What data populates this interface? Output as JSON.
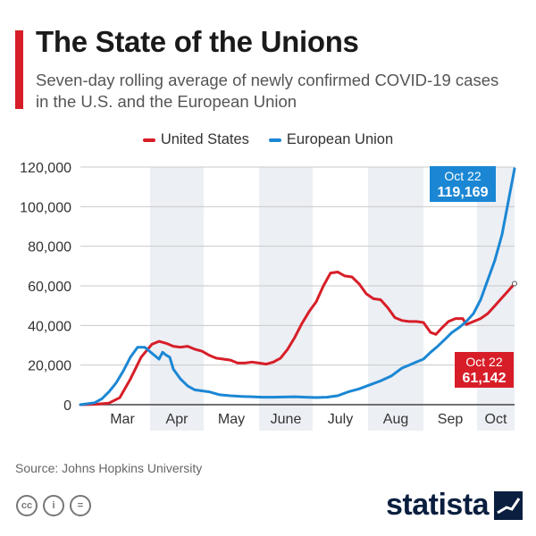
{
  "header": {
    "title": "The State of the Unions",
    "subtitle": "Seven-day rolling average of newly confirmed COVID-19 cases in the U.S. and the European Union"
  },
  "legend": {
    "us_label": "United States",
    "eu_label": "European Union"
  },
  "colors": {
    "us": "#d71e28",
    "eu": "#1b87d4",
    "shade": "#eceff4",
    "grid": "#c9c9c9",
    "brand": "#0a1f3f"
  },
  "chart_data": {
    "type": "line",
    "x_unit": "days since Mar 1, 2020",
    "xlim": [
      -8,
      235
    ],
    "ylim": [
      0,
      120000
    ],
    "y_ticks": [
      0,
      20000,
      40000,
      60000,
      80000,
      100000,
      120000
    ],
    "y_tick_labels": [
      "0",
      "20,000",
      "40,000",
      "60,000",
      "80,000",
      "100,000",
      "120,000"
    ],
    "months": [
      {
        "label": "Mar",
        "start": 0,
        "end": 31,
        "shaded": false
      },
      {
        "label": "Apr",
        "start": 31,
        "end": 61,
        "shaded": true
      },
      {
        "label": "May",
        "start": 61,
        "end": 92,
        "shaded": false
      },
      {
        "label": "June",
        "start": 92,
        "end": 122,
        "shaded": true
      },
      {
        "label": "July",
        "start": 122,
        "end": 153,
        "shaded": false
      },
      {
        "label": "Aug",
        "start": 153,
        "end": 184,
        "shaded": true
      },
      {
        "label": "Sep",
        "start": 184,
        "end": 214,
        "shaded": false
      },
      {
        "label": "Oct",
        "start": 214,
        "end": 235,
        "shaded": true
      }
    ],
    "series": [
      {
        "name": "United States",
        "color": "#d71e28",
        "points": [
          [
            -8,
            0
          ],
          [
            0,
            200
          ],
          [
            8,
            800
          ],
          [
            14,
            3500
          ],
          [
            20,
            13000
          ],
          [
            26,
            24000
          ],
          [
            32,
            30500
          ],
          [
            36,
            32000
          ],
          [
            40,
            31000
          ],
          [
            44,
            29500
          ],
          [
            48,
            29000
          ],
          [
            52,
            29500
          ],
          [
            56,
            28000
          ],
          [
            60,
            27000
          ],
          [
            64,
            25000
          ],
          [
            68,
            23500
          ],
          [
            72,
            23000
          ],
          [
            76,
            22500
          ],
          [
            80,
            21000
          ],
          [
            84,
            21000
          ],
          [
            88,
            21500
          ],
          [
            92,
            21000
          ],
          [
            96,
            20500
          ],
          [
            100,
            21500
          ],
          [
            104,
            23500
          ],
          [
            108,
            28000
          ],
          [
            112,
            34000
          ],
          [
            116,
            41000
          ],
          [
            120,
            47000
          ],
          [
            124,
            52000
          ],
          [
            128,
            60000
          ],
          [
            132,
            66500
          ],
          [
            136,
            67000
          ],
          [
            140,
            65000
          ],
          [
            144,
            64500
          ],
          [
            148,
            61000
          ],
          [
            152,
            56000
          ],
          [
            156,
            53500
          ],
          [
            160,
            53000
          ],
          [
            164,
            49000
          ],
          [
            168,
            44000
          ],
          [
            172,
            42500
          ],
          [
            176,
            42000
          ],
          [
            180,
            42000
          ],
          [
            184,
            41500
          ],
          [
            188,
            36500
          ],
          [
            191,
            35500
          ],
          [
            194,
            38500
          ],
          [
            198,
            42000
          ],
          [
            202,
            43500
          ],
          [
            206,
            43500
          ],
          [
            208,
            40500
          ],
          [
            212,
            42000
          ],
          [
            216,
            43500
          ],
          [
            220,
            46000
          ],
          [
            224,
            50000
          ],
          [
            228,
            54000
          ],
          [
            232,
            58000
          ],
          [
            235,
            61142
          ]
        ]
      },
      {
        "name": "European Union",
        "color": "#1b87d4",
        "points": [
          [
            -8,
            0
          ],
          [
            0,
            1000
          ],
          [
            4,
            3000
          ],
          [
            8,
            6500
          ],
          [
            12,
            11000
          ],
          [
            16,
            17000
          ],
          [
            20,
            24000
          ],
          [
            24,
            29000
          ],
          [
            28,
            29000
          ],
          [
            32,
            26000
          ],
          [
            36,
            23000
          ],
          [
            38,
            26500
          ],
          [
            40,
            25000
          ],
          [
            42,
            24000
          ],
          [
            44,
            18000
          ],
          [
            48,
            13000
          ],
          [
            52,
            9500
          ],
          [
            56,
            7500
          ],
          [
            60,
            7000
          ],
          [
            64,
            6500
          ],
          [
            70,
            5000
          ],
          [
            76,
            4500
          ],
          [
            82,
            4200
          ],
          [
            88,
            4000
          ],
          [
            94,
            3800
          ],
          [
            100,
            3800
          ],
          [
            106,
            3900
          ],
          [
            112,
            4000
          ],
          [
            118,
            3800
          ],
          [
            124,
            3600
          ],
          [
            130,
            3800
          ],
          [
            136,
            4500
          ],
          [
            142,
            6500
          ],
          [
            148,
            8000
          ],
          [
            154,
            10000
          ],
          [
            160,
            12000
          ],
          [
            166,
            14500
          ],
          [
            172,
            18500
          ],
          [
            176,
            20000
          ],
          [
            180,
            21500
          ],
          [
            184,
            23000
          ],
          [
            188,
            26500
          ],
          [
            192,
            29500
          ],
          [
            196,
            33000
          ],
          [
            200,
            36500
          ],
          [
            204,
            39000
          ],
          [
            208,
            42000
          ],
          [
            212,
            46000
          ],
          [
            216,
            53000
          ],
          [
            220,
            63000
          ],
          [
            224,
            73000
          ],
          [
            228,
            86000
          ],
          [
            232,
            105000
          ],
          [
            235,
            119169
          ]
        ]
      }
    ],
    "callouts": [
      {
        "series": "European Union",
        "date": "Oct 22",
        "value_text": "119,169"
      },
      {
        "series": "United States",
        "date": "Oct 22",
        "value_text": "61,142"
      }
    ]
  },
  "footer": {
    "source": "Source: Johns Hopkins University",
    "cc_icons": [
      "creative-commons-icon",
      "attribution-icon",
      "no-derivatives-icon"
    ],
    "cc_glyphs": [
      "cc",
      "i",
      "="
    ],
    "brand": "statista"
  }
}
